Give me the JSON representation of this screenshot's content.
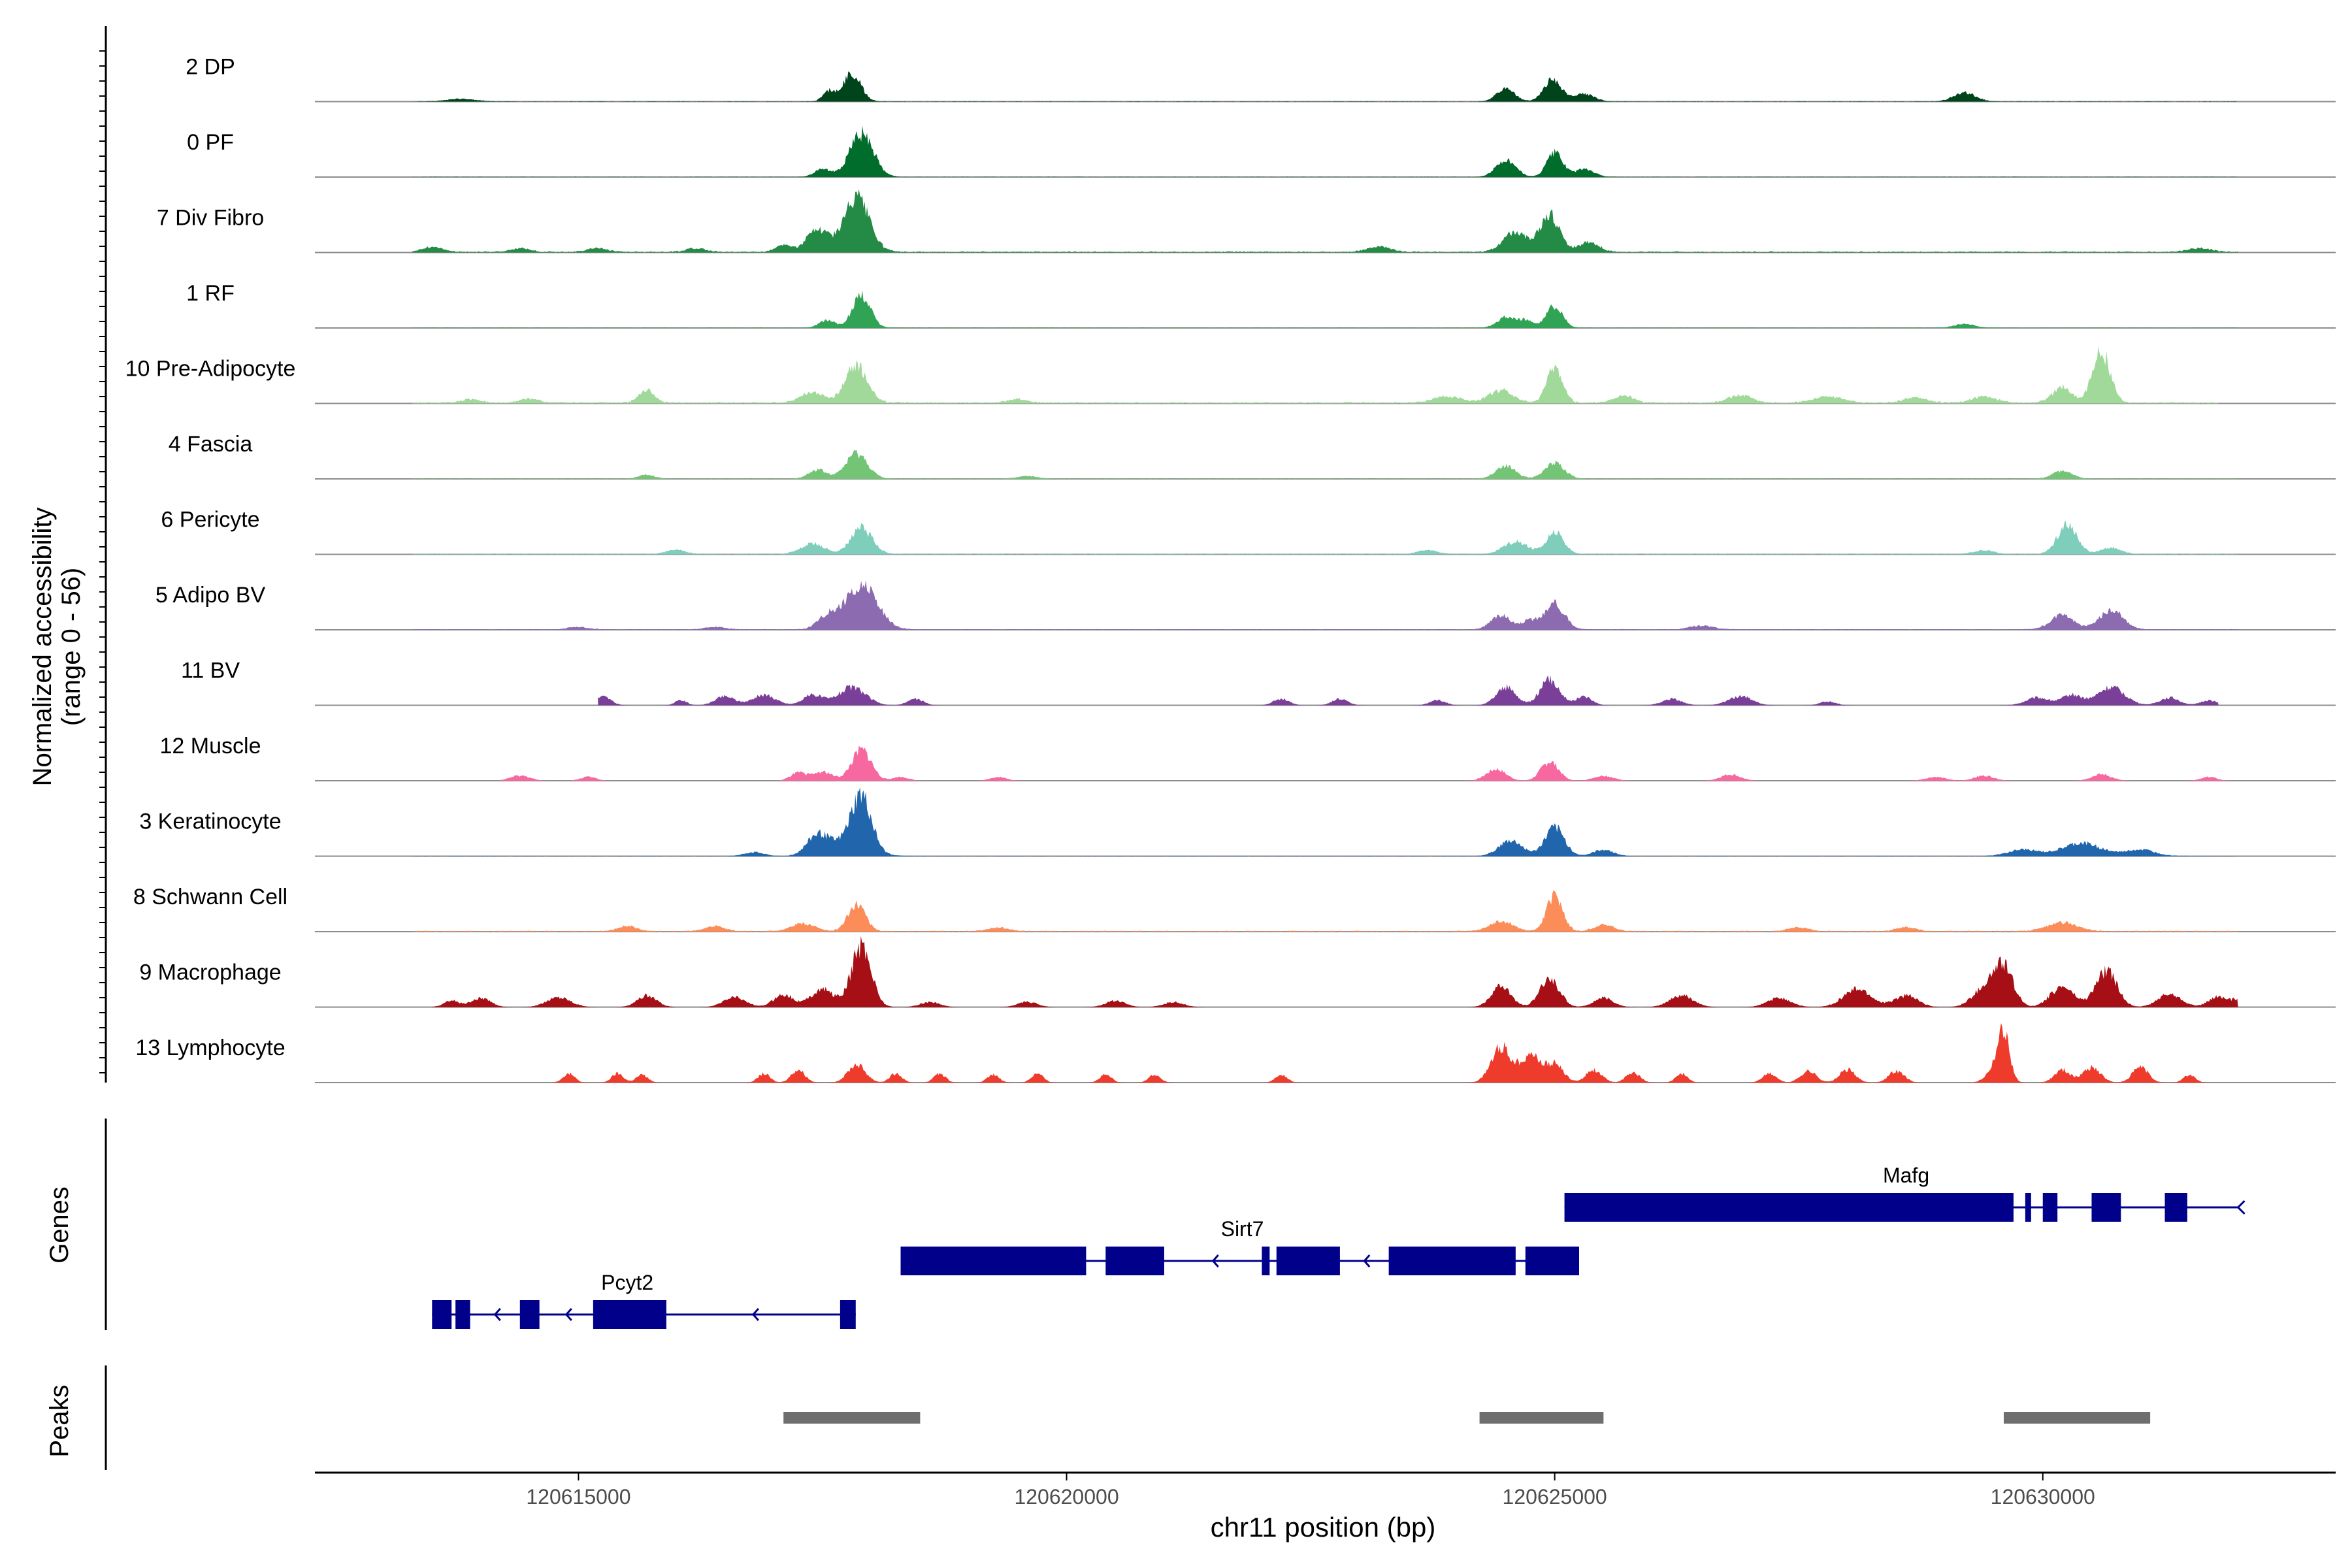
{
  "chart_data": {
    "type": "area",
    "title": "",
    "xlabel": "chr11 position (bp)",
    "ylabel": "Normalized accessibility",
    "ylabel_range": "(range 0 - 56)",
    "ylim": [
      0,
      56
    ],
    "xlim": [
      120612300,
      120633000
    ],
    "x_ticks": [
      120615000,
      120620000,
      120625000,
      120630000
    ],
    "x_tick_labels": [
      "120615000",
      "120620000",
      "120625000",
      "120630000"
    ],
    "genes_label": "Genes",
    "peaks_label": "Peaks",
    "series": [
      {
        "name": "2 DP",
        "color": "#00441b",
        "x_range": [
          120613300,
          120632000
        ],
        "noise": 0.03,
        "peaks": [
          [
            120617800,
            22,
            90
          ],
          [
            120617560,
            8,
            60
          ],
          [
            120624500,
            10,
            90
          ],
          [
            120624980,
            17,
            90
          ],
          [
            120625300,
            6,
            100
          ],
          [
            120629200,
            7,
            110
          ],
          [
            120613800,
            2,
            150
          ]
        ]
      },
      {
        "name": "0 PF",
        "color": "#006d2c",
        "x_range": [
          120613300,
          120632000
        ],
        "noise": 0.03,
        "peaks": [
          [
            120617900,
            34,
            120
          ],
          [
            120617500,
            6,
            80
          ],
          [
            120624500,
            13,
            100
          ],
          [
            120625000,
            19,
            80
          ],
          [
            120625300,
            6,
            100
          ]
        ]
      },
      {
        "name": "7 Div Fibro",
        "color": "#238b45",
        "x_range": [
          120613300,
          120632000
        ],
        "noise": 0.1,
        "peaks": [
          [
            120617850,
            42,
            130
          ],
          [
            120617450,
            18,
            110
          ],
          [
            120617100,
            6,
            80
          ],
          [
            120624600,
            16,
            120
          ],
          [
            120624950,
            28,
            100
          ],
          [
            120625350,
            8,
            100
          ],
          [
            120623200,
            4,
            120
          ],
          [
            120613500,
            4,
            100
          ],
          [
            120614400,
            3,
            100
          ],
          [
            120615200,
            3,
            100
          ],
          [
            120616200,
            3,
            100
          ],
          [
            120631600,
            3,
            120
          ]
        ]
      },
      {
        "name": "1 RF",
        "color": "#31a354",
        "x_range": [
          120613300,
          120632000
        ],
        "noise": 0.04,
        "peaks": [
          [
            120617900,
            26,
            90
          ],
          [
            120617550,
            6,
            80
          ],
          [
            120624500,
            8,
            90
          ],
          [
            120625000,
            17,
            80
          ],
          [
            120624700,
            6,
            80
          ],
          [
            120629200,
            3,
            100
          ]
        ]
      },
      {
        "name": "10 Pre-Adipocyte",
        "color": "#a1d99b",
        "x_range": [
          120613300,
          120631800
        ],
        "noise": 0.12,
        "peaks": [
          [
            120617850,
            30,
            110
          ],
          [
            120617400,
            8,
            120
          ],
          [
            120615700,
            10,
            80
          ],
          [
            120625000,
            28,
            80
          ],
          [
            120624450,
            10,
            120
          ],
          [
            120625700,
            6,
            100
          ],
          [
            120630600,
            40,
            90
          ],
          [
            120630200,
            12,
            100
          ],
          [
            120629400,
            5,
            120
          ],
          [
            120626900,
            6,
            120
          ],
          [
            120627800,
            5,
            150
          ],
          [
            120623900,
            5,
            150
          ],
          [
            120613900,
            3,
            100
          ],
          [
            120614500,
            3,
            100
          ],
          [
            120619500,
            3,
            100
          ],
          [
            120628700,
            4,
            120
          ]
        ]
      },
      {
        "name": "4 Fascia",
        "color": "#74c476",
        "x_range": [
          120613300,
          120632000
        ],
        "noise": 0.04,
        "peaks": [
          [
            120617850,
            20,
            110
          ],
          [
            120617450,
            7,
            90
          ],
          [
            120624500,
            10,
            100
          ],
          [
            120625000,
            12,
            100
          ],
          [
            120630200,
            6,
            100
          ],
          [
            120615700,
            3,
            80
          ],
          [
            120619600,
            2,
            100
          ]
        ]
      },
      {
        "name": "6 Pericyte",
        "color": "#7fcdbb",
        "x_range": [
          120613300,
          120632000
        ],
        "noise": 0.06,
        "peaks": [
          [
            120617900,
            20,
            110
          ],
          [
            120617400,
            8,
            120
          ],
          [
            120624600,
            10,
            120
          ],
          [
            120625000,
            17,
            90
          ],
          [
            120630250,
            23,
            100
          ],
          [
            120630700,
            5,
            100
          ],
          [
            120616000,
            3,
            100
          ],
          [
            120623700,
            3,
            100
          ],
          [
            120629400,
            3,
            100
          ]
        ]
      },
      {
        "name": "5 Adipo BV",
        "color": "#8c6bb1",
        "x_range": [
          120613300,
          120632000
        ],
        "noise": 0.06,
        "peaks": [
          [
            120617900,
            34,
            160
          ],
          [
            120617550,
            10,
            100
          ],
          [
            120624450,
            11,
            100
          ],
          [
            120625000,
            20,
            100
          ],
          [
            120624750,
            7,
            80
          ],
          [
            120630200,
            11,
            120
          ],
          [
            120630700,
            15,
            120
          ],
          [
            120615000,
            2,
            100
          ],
          [
            120616400,
            2,
            100
          ],
          [
            120626500,
            3,
            120
          ]
        ]
      },
      {
        "name": "11 BV",
        "color": "#7a3f98",
        "x_range": [
          120615200,
          120631800
        ],
        "noise": 0,
        "peaks": [
          [
            120617800,
            14,
            140
          ],
          [
            120617400,
            8,
            100
          ],
          [
            120616900,
            8,
            120
          ],
          [
            120616500,
            7,
            100
          ],
          [
            120615250,
            7,
            80
          ],
          [
            120616050,
            4,
            60
          ],
          [
            120618450,
            5,
            80
          ],
          [
            120624500,
            14,
            100
          ],
          [
            120624950,
            20,
            100
          ],
          [
            120625300,
            7,
            80
          ],
          [
            120626200,
            5,
            100
          ],
          [
            120626900,
            7,
            120
          ],
          [
            120622200,
            5,
            80
          ],
          [
            120622800,
            5,
            80
          ],
          [
            120623800,
            4,
            80
          ],
          [
            120627800,
            3,
            80
          ],
          [
            120629950,
            6,
            120
          ],
          [
            120630300,
            8,
            100
          ],
          [
            120630700,
            14,
            140
          ],
          [
            120631300,
            6,
            100
          ],
          [
            120631700,
            4,
            80
          ]
        ]
      },
      {
        "name": "12 Muscle",
        "color": "#f768a1",
        "x_range": [
          120614200,
          120632100
        ],
        "noise": 0,
        "peaks": [
          [
            120617900,
            24,
            100
          ],
          [
            120617500,
            7,
            100
          ],
          [
            120617250,
            6,
            80
          ],
          [
            120614400,
            4,
            100
          ],
          [
            120615100,
            3,
            80
          ],
          [
            120624400,
            9,
            100
          ],
          [
            120624950,
            15,
            90
          ],
          [
            120625500,
            4,
            100
          ],
          [
            120626800,
            5,
            100
          ],
          [
            120628900,
            3,
            100
          ],
          [
            120629400,
            4,
            100
          ],
          [
            120630600,
            5,
            100
          ],
          [
            120631700,
            3,
            80
          ],
          [
            120618300,
            3,
            80
          ],
          [
            120619300,
            3,
            80
          ]
        ]
      },
      {
        "name": "3 Keratinocyte",
        "color": "#2166ac",
        "x_range": [
          120613300,
          120632000
        ],
        "noise": 0.03,
        "peaks": [
          [
            120617900,
            38,
            100
          ],
          [
            120617450,
            16,
            110
          ],
          [
            120617800,
            12,
            180
          ],
          [
            120624550,
            12,
            120
          ],
          [
            120625000,
            22,
            100
          ],
          [
            120625500,
            5,
            100
          ],
          [
            120630400,
            10,
            200
          ],
          [
            120629800,
            5,
            150
          ],
          [
            120631000,
            5,
            150
          ],
          [
            120616800,
            3,
            100
          ]
        ]
      },
      {
        "name": "8 Schwann Cell",
        "color": "#fc8d59",
        "x_range": [
          120613300,
          120632000
        ],
        "noise": 0.08,
        "peaks": [
          [
            120617850,
            20,
            90
          ],
          [
            120617300,
            6,
            120
          ],
          [
            120624450,
            8,
            120
          ],
          [
            120625000,
            28,
            80
          ],
          [
            120625500,
            5,
            100
          ],
          [
            120630200,
            7,
            150
          ],
          [
            120615500,
            4,
            100
          ],
          [
            120616400,
            4,
            100
          ],
          [
            120619300,
            3,
            100
          ],
          [
            120627500,
            3,
            100
          ],
          [
            120628600,
            3,
            100
          ]
        ]
      },
      {
        "name": "9 Macrophage",
        "color": "#a50f15",
        "x_range": [
          120613500,
          120632000
        ],
        "noise": 0,
        "peaks": [
          [
            120617900,
            48,
            100
          ],
          [
            120617500,
            14,
            120
          ],
          [
            120617100,
            10,
            100
          ],
          [
            120616600,
            8,
            110
          ],
          [
            120614000,
            7,
            100
          ],
          [
            120614800,
            8,
            120
          ],
          [
            120615700,
            9,
            100
          ],
          [
            120613700,
            5,
            80
          ],
          [
            120618600,
            4,
            100
          ],
          [
            120619600,
            4,
            100
          ],
          [
            120620500,
            5,
            100
          ],
          [
            120621100,
            4,
            100
          ],
          [
            120624450,
            16,
            100
          ],
          [
            120624950,
            22,
            100
          ],
          [
            120625500,
            7,
            100
          ],
          [
            120626300,
            9,
            120
          ],
          [
            120627300,
            7,
            120
          ],
          [
            120628100,
            14,
            140
          ],
          [
            120628600,
            9,
            120
          ],
          [
            120629600,
            30,
            100
          ],
          [
            120629400,
            14,
            120
          ],
          [
            120630200,
            16,
            120
          ],
          [
            120630650,
            28,
            110
          ],
          [
            120631300,
            10,
            120
          ],
          [
            120631800,
            8,
            100
          ],
          [
            120632000,
            5,
            60
          ]
        ]
      },
      {
        "name": "13 Lymphocyte",
        "color": "#ef3b2c",
        "x_range": [
          120614500,
          120631700
        ],
        "noise": 0,
        "peaks": [
          [
            120614900,
            7,
            60
          ],
          [
            120615400,
            7,
            60
          ],
          [
            120615650,
            6,
            60
          ],
          [
            120616900,
            7,
            60
          ],
          [
            120617250,
            10,
            70
          ],
          [
            120617850,
            14,
            90
          ],
          [
            120618250,
            7,
            60
          ],
          [
            120618700,
            7,
            60
          ],
          [
            120619250,
            6,
            60
          ],
          [
            120619700,
            7,
            60
          ],
          [
            120620400,
            6,
            60
          ],
          [
            120620900,
            6,
            60
          ],
          [
            120622200,
            6,
            60
          ],
          [
            120624450,
            28,
            100
          ],
          [
            120624750,
            22,
            100
          ],
          [
            120625000,
            14,
            90
          ],
          [
            120625400,
            10,
            80
          ],
          [
            120625800,
            8,
            70
          ],
          [
            120626300,
            7,
            60
          ],
          [
            120627200,
            7,
            70
          ],
          [
            120627600,
            9,
            80
          ],
          [
            120628000,
            10,
            80
          ],
          [
            120628500,
            9,
            80
          ],
          [
            120629600,
            38,
            60
          ],
          [
            120629500,
            10,
            80
          ],
          [
            120630200,
            10,
            80
          ],
          [
            120630500,
            12,
            90
          ],
          [
            120631000,
            12,
            80
          ],
          [
            120631500,
            6,
            60
          ]
        ]
      }
    ],
    "genes": [
      {
        "name": "Pcyt2",
        "strand": "-",
        "start": 120613500,
        "end": 120617840,
        "row": 2,
        "label_x": 120615500,
        "exons": [
          [
            120613500,
            120613700
          ],
          [
            120613740,
            120613890
          ],
          [
            120614400,
            120614600
          ],
          [
            120615150,
            120615900
          ],
          [
            120617680,
            120617840
          ]
        ]
      },
      {
        "name": "Sirt7",
        "strand": "-",
        "start": 120618300,
        "end": 120625200,
        "row": 1,
        "label_x": 120621800,
        "exons": [
          [
            120618300,
            120620200
          ],
          [
            120620400,
            120621000
          ],
          [
            120622000,
            120622080
          ],
          [
            120622150,
            120622800
          ],
          [
            120623300,
            120624600
          ],
          [
            120624700,
            120625250
          ]
        ]
      },
      {
        "name": "Mafg",
        "strand": "-",
        "start": 120625100,
        "end": 120632000,
        "row": 0,
        "label_x": 120628600,
        "exons": [
          [
            120625100,
            120629700
          ],
          [
            120629820,
            120629880
          ],
          [
            120630000,
            120630150
          ],
          [
            120630500,
            120630800
          ],
          [
            120631250,
            120631480
          ]
        ]
      }
    ],
    "peaks": [
      [
        120617100,
        120618500
      ],
      [
        120624230,
        120625500
      ],
      [
        120629600,
        120631100
      ]
    ]
  }
}
